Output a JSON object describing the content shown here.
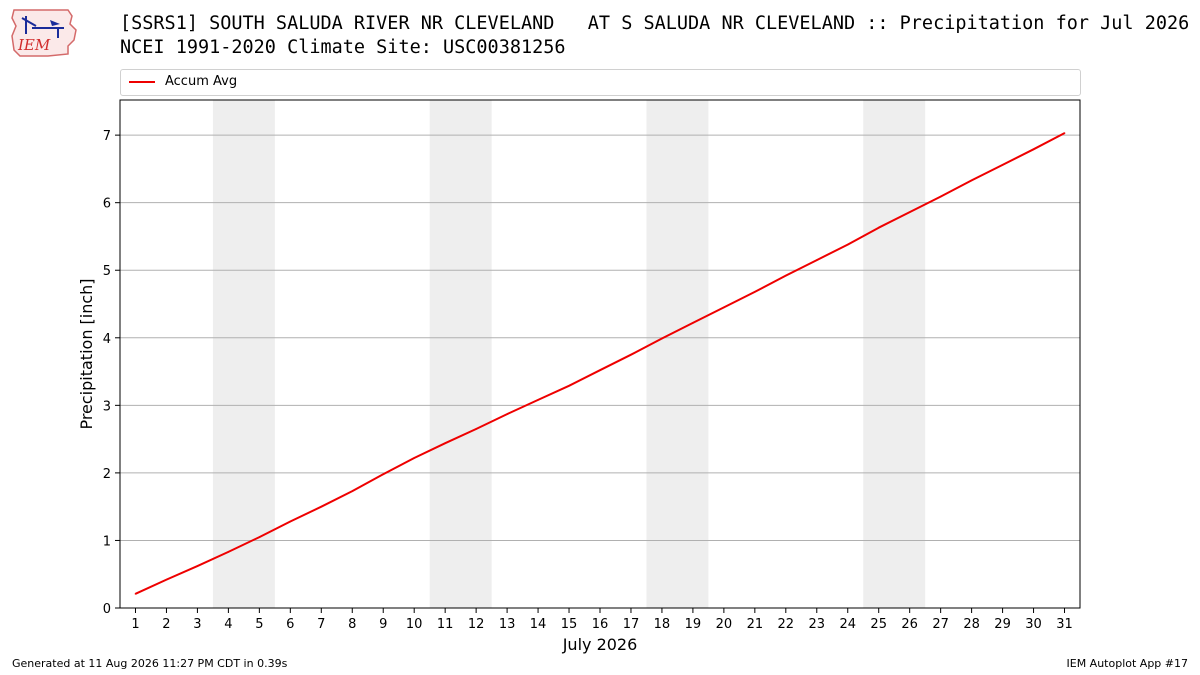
{
  "logo": {
    "text": "IEM",
    "icon": "iem-logo-icon"
  },
  "header": {
    "title_line1": "[SSRS1] SOUTH SALUDA RIVER NR CLEVELAND   AT S SALUDA NR CLEVELAND :: Precipitation for Jul 2026",
    "title_line2": "NCEI 1991-2020 Climate Site: USC00381256"
  },
  "footer": {
    "generated": "Generated at 11 Aug 2026 11:27 PM CDT in 0.39s",
    "app": "IEM Autoplot App #17"
  },
  "chart_data": {
    "type": "line",
    "title": "[SSRS1] SOUTH SALUDA RIVER NR CLEVELAND   AT S SALUDA NR CLEVELAND :: Precipitation for Jul 2026",
    "subtitle": "NCEI 1991-2020 Climate Site: USC00381256",
    "xlabel": "July 2026",
    "ylabel": "Precipitation [inch]",
    "x": [
      1,
      2,
      3,
      4,
      5,
      6,
      7,
      8,
      9,
      10,
      11,
      12,
      13,
      14,
      15,
      16,
      17,
      18,
      19,
      20,
      21,
      22,
      23,
      24,
      25,
      26,
      27,
      28,
      29,
      30,
      31
    ],
    "xlim": [
      0.5,
      31.5
    ],
    "ylim": [
      0,
      7.52
    ],
    "yticks": [
      0,
      1,
      2,
      3,
      4,
      5,
      6,
      7
    ],
    "series": [
      {
        "name": "Accum Avg",
        "color": "#ee0000",
        "values": [
          0.21,
          0.42,
          0.62,
          0.83,
          1.05,
          1.28,
          1.5,
          1.73,
          1.98,
          2.22,
          2.44,
          2.65,
          2.87,
          3.08,
          3.29,
          3.52,
          3.75,
          3.99,
          4.22,
          4.45,
          4.68,
          4.92,
          5.15,
          5.38,
          5.63,
          5.86,
          6.09,
          6.33,
          6.56,
          6.79,
          7.03
        ]
      }
    ],
    "weekend_bands": [
      [
        3.5,
        5.5
      ],
      [
        10.5,
        12.5
      ],
      [
        17.5,
        19.5
      ],
      [
        24.5,
        26.5
      ]
    ],
    "band_color": "#eeeeee",
    "grid": "horizontal",
    "legend_position": "top"
  }
}
